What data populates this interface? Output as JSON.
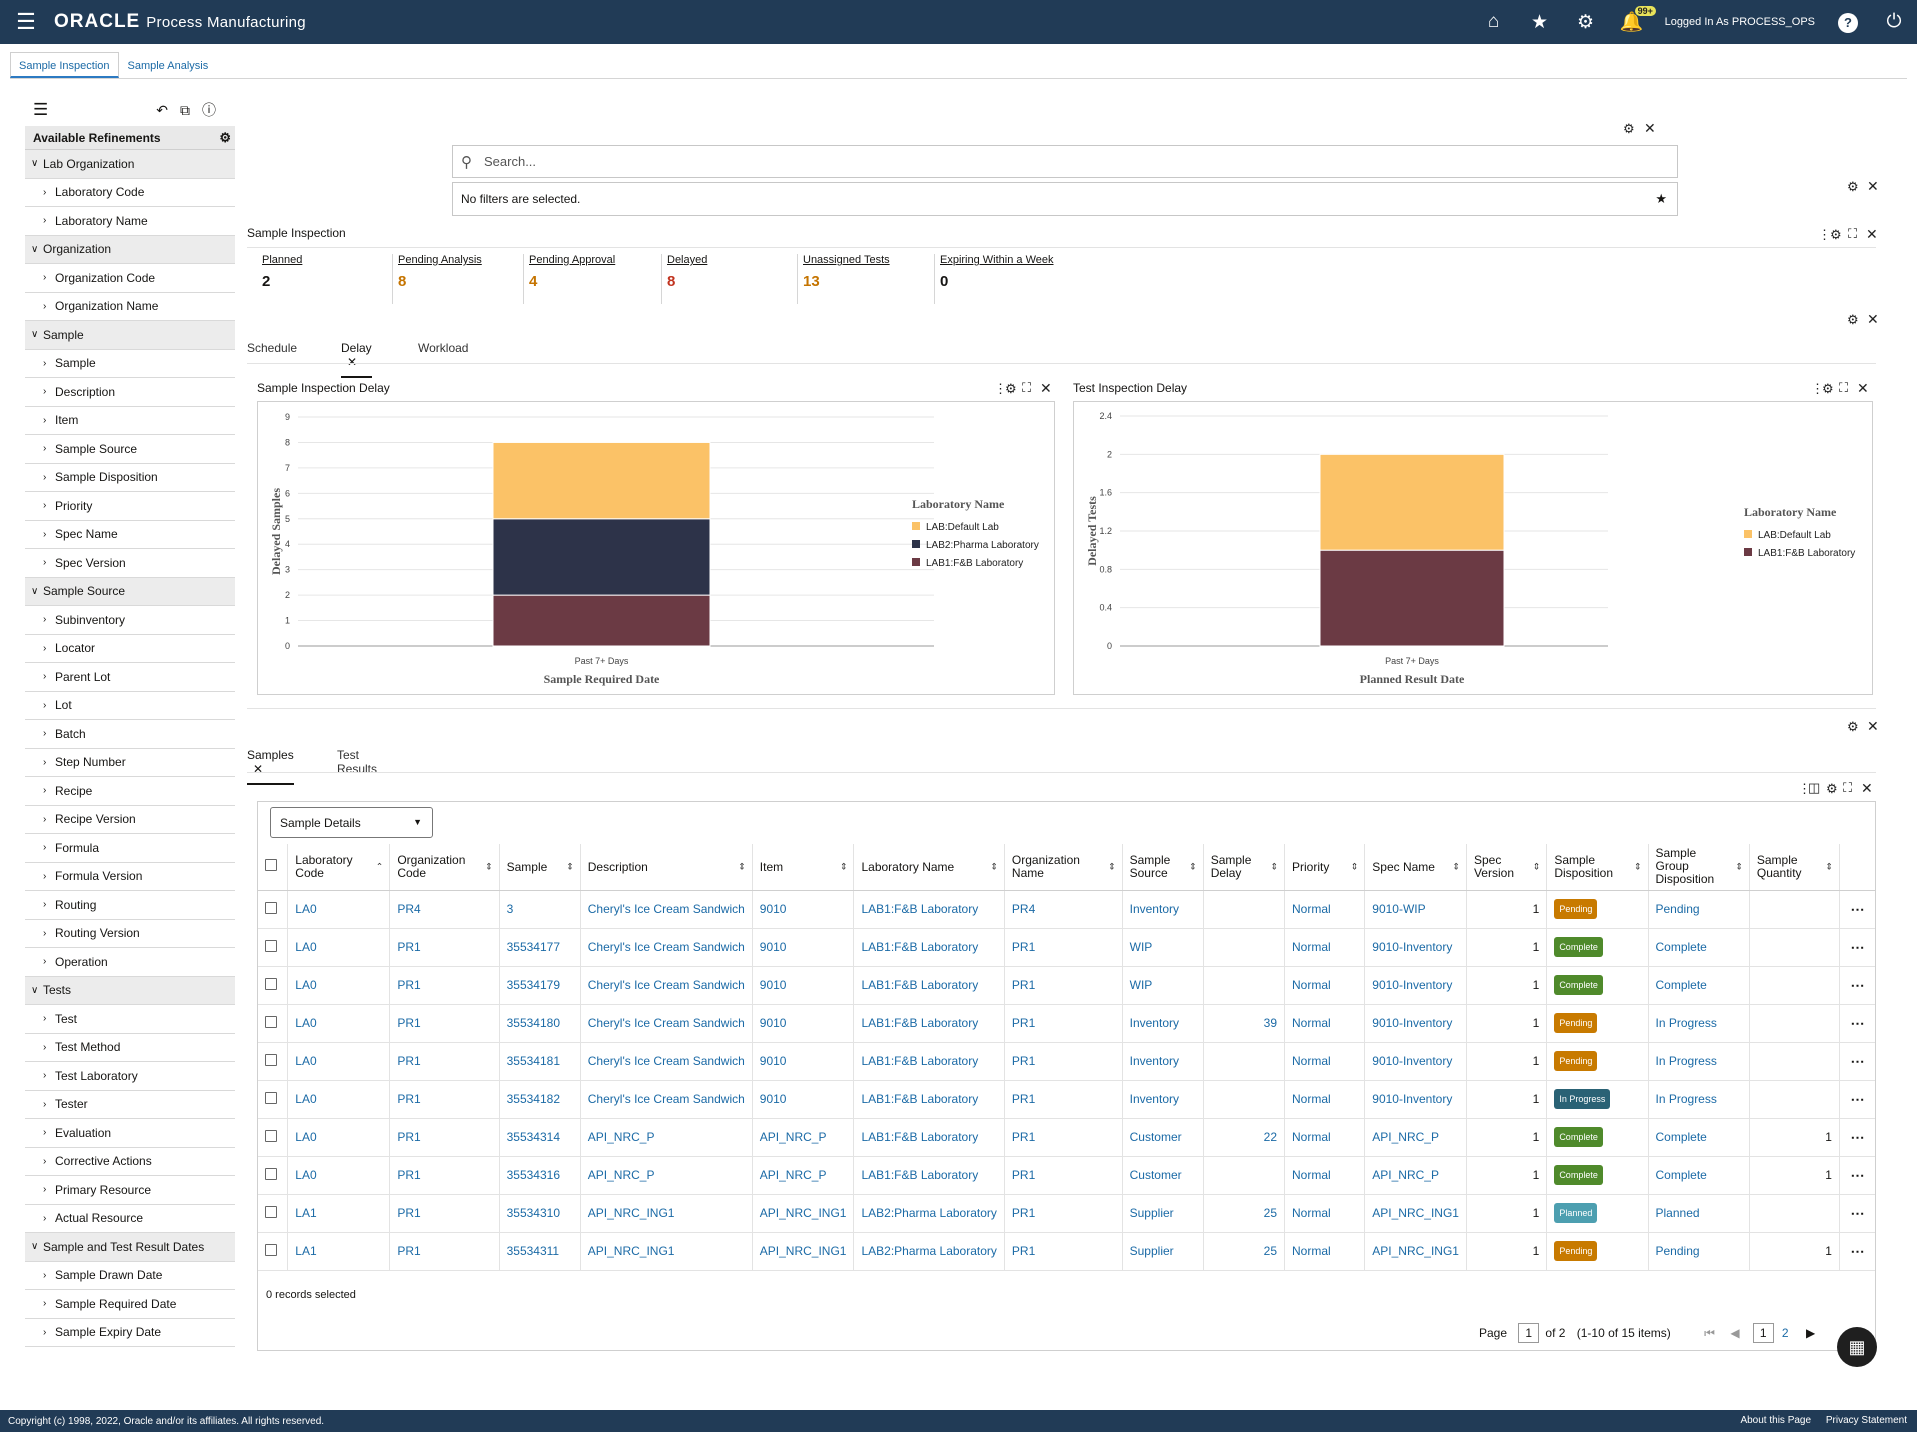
{
  "app": {
    "brand": "ORACLE",
    "product": "Process Manufacturing",
    "logged_in": "Logged In As PROCESS_OPS",
    "notif_badge": "99+"
  },
  "tabs": [
    {
      "label": "Sample Inspection"
    },
    {
      "label": "Sample Analysis"
    }
  ],
  "sidebar": {
    "header": "Available Refinements",
    "sections": [
      {
        "label": "Lab Organization",
        "items": [
          "Laboratory Code",
          "Laboratory Name"
        ]
      },
      {
        "label": "Organization",
        "items": [
          "Organization Code",
          "Organization Name"
        ]
      },
      {
        "label": "Sample",
        "items": [
          "Sample",
          "Description",
          "Item",
          "Sample Source",
          "Sample Disposition",
          "Priority",
          "Spec Name",
          "Spec Version"
        ]
      },
      {
        "label": "Sample Source",
        "items": [
          "Subinventory",
          "Locator",
          "Parent Lot",
          "Lot",
          "Batch",
          "Step Number",
          "Recipe",
          "Recipe Version",
          "Formula",
          "Formula Version",
          "Routing",
          "Routing Version",
          "Operation"
        ]
      },
      {
        "label": "Tests",
        "items": [
          "Test",
          "Test Method",
          "Test Laboratory",
          "Tester",
          "Evaluation",
          "Corrective Actions",
          "Primary Resource",
          "Actual Resource"
        ]
      },
      {
        "label": "Sample and Test Result Dates",
        "items": [
          "Sample Drawn Date",
          "Sample Required Date",
          "Sample Expiry Date"
        ]
      }
    ]
  },
  "search": {
    "placeholder": "Search...",
    "filters_text": "No filters are selected."
  },
  "summary": {
    "title": "Sample Inspection",
    "kpis": [
      {
        "label": "Planned",
        "value": "2",
        "color": "#161513"
      },
      {
        "label": "Pending Analysis",
        "value": "8",
        "color": "#c57400"
      },
      {
        "label": "Pending Approval",
        "value": "4",
        "color": "#c57400"
      },
      {
        "label": "Delayed",
        "value": "8",
        "color": "#c1331f"
      },
      {
        "label": "Unassigned Tests",
        "value": "13",
        "color": "#c57400"
      },
      {
        "label": "Expiring Within a Week",
        "value": "0",
        "color": "#161513"
      }
    ]
  },
  "chart_tabs": [
    {
      "label": "Schedule"
    },
    {
      "label": "Delay"
    },
    {
      "label": "Workload"
    }
  ],
  "chart_data": [
    {
      "type": "bar",
      "title": "Sample Inspection Delay",
      "xlabel": "Sample Required Date",
      "ylabel": "Delayed Samples",
      "categories": [
        "Past 7+ Days"
      ],
      "stacked": true,
      "ylim": [
        0,
        9
      ],
      "yticks": [
        0,
        1,
        2,
        3,
        4,
        5,
        6,
        7,
        8,
        9
      ],
      "legend_title": "Laboratory Name",
      "series": [
        {
          "name": "LAB1:F&B Laboratory",
          "values": [
            2
          ],
          "color": "#6b3a44"
        },
        {
          "name": "LAB2:Pharma Laboratory",
          "values": [
            3
          ],
          "color": "#2d3349"
        },
        {
          "name": "LAB:Default Lab",
          "values": [
            3
          ],
          "color": "#fbc267"
        }
      ]
    },
    {
      "type": "bar",
      "title": "Test Inspection Delay",
      "xlabel": "Planned Result Date",
      "ylabel": "Delayed Tests",
      "categories": [
        "Past 7+ Days"
      ],
      "stacked": true,
      "ylim": [
        0,
        2.4
      ],
      "yticks": [
        0,
        0.4,
        0.8,
        1.2,
        1.6,
        2,
        2.4
      ],
      "legend_title": "Laboratory Name",
      "series": [
        {
          "name": "LAB1:F&B Laboratory",
          "values": [
            1
          ],
          "color": "#6b3a44"
        },
        {
          "name": "LAB:Default Lab",
          "values": [
            1
          ],
          "color": "#fbc267"
        }
      ]
    }
  ],
  "table_tabs": [
    {
      "label": "Samples"
    },
    {
      "label": "Test Results"
    }
  ],
  "table": {
    "view_select": "Sample Details",
    "columns": [
      "Laboratory Code",
      "Organization Code",
      "Sample",
      "Description",
      "Item",
      "Laboratory Name",
      "Organization Name",
      "Sample Source",
      "Sample Delay",
      "Priority",
      "Spec Name",
      "Spec Version",
      "Sample Disposition",
      "Sample Group Disposition",
      "Sample Quantity"
    ],
    "rows": [
      [
        "LA0",
        "PR4",
        "3",
        "Cheryl's Ice Cream Sandwich",
        "9010",
        "LAB1:F&B Laboratory",
        "PR4",
        "Inventory",
        "",
        "Normal",
        "9010-WIP",
        "1",
        "Pending",
        "Pending",
        ""
      ],
      [
        "LA0",
        "PR1",
        "35534177",
        "Cheryl's Ice Cream Sandwich",
        "9010",
        "LAB1:F&B Laboratory",
        "PR1",
        "WIP",
        "",
        "Normal",
        "9010-Inventory",
        "1",
        "Complete",
        "Complete",
        ""
      ],
      [
        "LA0",
        "PR1",
        "35534179",
        "Cheryl's Ice Cream Sandwich",
        "9010",
        "LAB1:F&B Laboratory",
        "PR1",
        "WIP",
        "",
        "Normal",
        "9010-Inventory",
        "1",
        "Complete",
        "Complete",
        ""
      ],
      [
        "LA0",
        "PR1",
        "35534180",
        "Cheryl's Ice Cream Sandwich",
        "9010",
        "LAB1:F&B Laboratory",
        "PR1",
        "Inventory",
        "39",
        "Normal",
        "9010-Inventory",
        "1",
        "Pending",
        "In Progress",
        ""
      ],
      [
        "LA0",
        "PR1",
        "35534181",
        "Cheryl's Ice Cream Sandwich",
        "9010",
        "LAB1:F&B Laboratory",
        "PR1",
        "Inventory",
        "",
        "Normal",
        "9010-Inventory",
        "1",
        "Pending",
        "In Progress",
        ""
      ],
      [
        "LA0",
        "PR1",
        "35534182",
        "Cheryl's Ice Cream Sandwich",
        "9010",
        "LAB1:F&B Laboratory",
        "PR1",
        "Inventory",
        "",
        "Normal",
        "9010-Inventory",
        "1",
        "In Progress",
        "In Progress",
        ""
      ],
      [
        "LA0",
        "PR1",
        "35534314",
        "API_NRC_P",
        "API_NRC_P",
        "LAB1:F&B Laboratory",
        "PR1",
        "Customer",
        "22",
        "Normal",
        "API_NRC_P",
        "1",
        "Complete",
        "Complete",
        "1"
      ],
      [
        "LA0",
        "PR1",
        "35534316",
        "API_NRC_P",
        "API_NRC_P",
        "LAB1:F&B Laboratory",
        "PR1",
        "Customer",
        "",
        "Normal",
        "API_NRC_P",
        "1",
        "Complete",
        "Complete",
        "1"
      ],
      [
        "LA1",
        "PR1",
        "35534310",
        "API_NRC_ING1",
        "API_NRC_ING1",
        "LAB2:Pharma Laboratory",
        "PR1",
        "Supplier",
        "25",
        "Normal",
        "API_NRC_ING1",
        "1",
        "Planned",
        "Planned",
        ""
      ],
      [
        "LA1",
        "PR1",
        "35534311",
        "API_NRC_ING1",
        "API_NRC_ING1",
        "LAB2:Pharma Laboratory",
        "PR1",
        "Supplier",
        "25",
        "Normal",
        "API_NRC_ING1",
        "1",
        "Pending",
        "Pending",
        "1"
      ]
    ],
    "selected_text": "0 records selected",
    "pager": {
      "page_label": "Page",
      "page": "1",
      "of": "of 2",
      "range": "(1-10 of 15 items)",
      "p1": "1",
      "p2": "2"
    }
  },
  "disposition_colors": {
    "Pending": "#c87a00",
    "Complete": "#4f8a2b",
    "In Progress": "#2a6275",
    "Planned": "#4d9fb0"
  },
  "footer": {
    "copyright": "Copyright (c) 1998, 2022, Oracle and/or its affiliates. All rights reserved.",
    "about": "About this Page",
    "privacy": "Privacy Statement"
  }
}
